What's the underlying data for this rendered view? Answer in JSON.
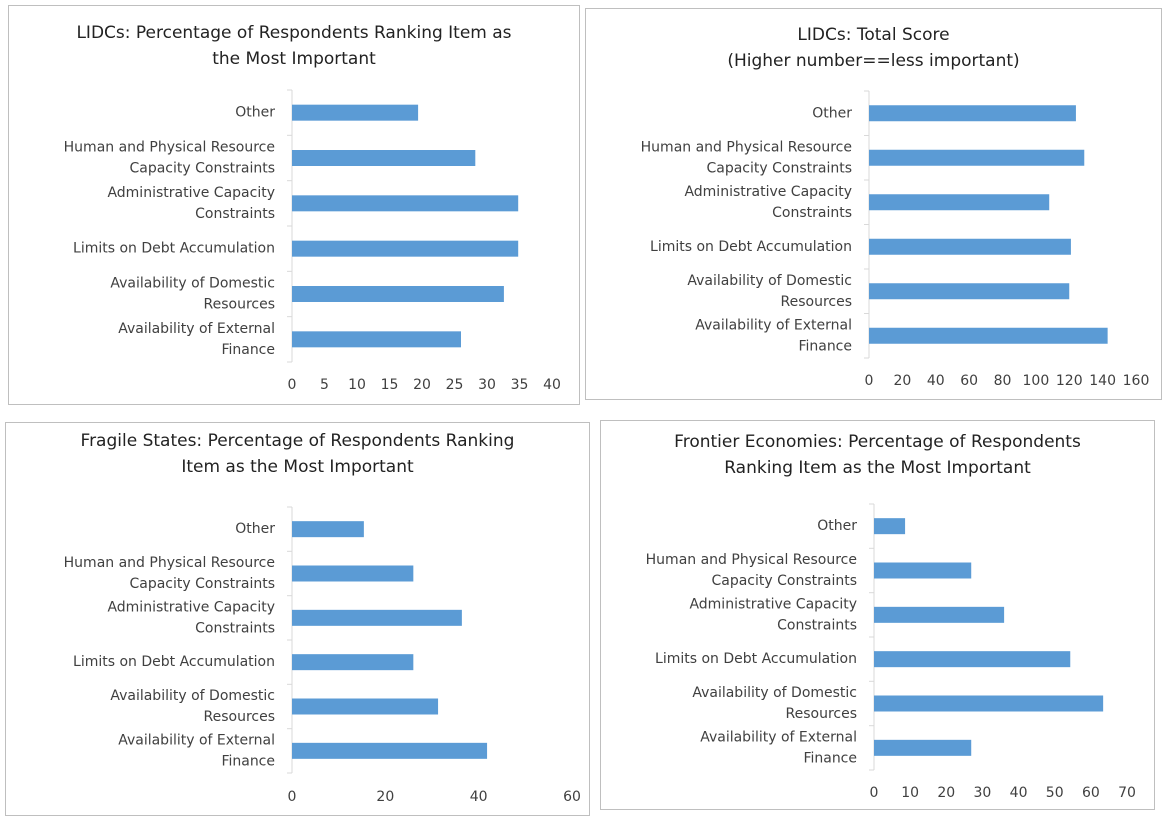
{
  "chart_data": [
    {
      "type": "bar",
      "orientation": "horizontal",
      "title": "LIDCs: Percentage of Respondents Ranking Item as the Most Important",
      "categories": [
        "Other",
        "Human and Physical Resource Capacity Constraints",
        "Administrative Capacity Constraints",
        "Limits on Debt Accumulation",
        "Availability of Domestic Resources",
        "Availability of External Finance"
      ],
      "values": [
        19.4,
        28.2,
        34.8,
        34.8,
        32.6,
        26
      ],
      "color": "#5b9bd5",
      "xlim": [
        0,
        40
      ],
      "xticks": [
        0,
        5,
        10,
        15,
        20,
        25,
        30,
        35,
        40
      ]
    },
    {
      "type": "bar",
      "orientation": "horizontal",
      "title": "LIDCs: Total Score",
      "subtitle": "(Higher number==less important)",
      "categories": [
        "Other",
        "Human and Physical Resource Capacity Constraints",
        "Administrative Capacity Constraints",
        "Limits on Debt Accumulation",
        "Availability of Domestic Resources",
        "Availability of External Finance"
      ],
      "values": [
        124,
        129,
        108,
        121,
        120,
        143
      ],
      "color": "#5b9bd5",
      "xlim": [
        0,
        160
      ],
      "xticks": [
        0,
        20,
        40,
        60,
        80,
        100,
        120,
        140,
        160
      ]
    },
    {
      "type": "bar",
      "orientation": "horizontal",
      "title": "Fragile States: Percentage of Respondents Ranking Item as the Most Important",
      "categories": [
        "Other",
        "Human and Physical Resource Capacity Constraints",
        "Administrative Capacity Constraints",
        "Limits on Debt Accumulation",
        "Availability of Domestic Resources",
        "Availability of External Finance"
      ],
      "values": [
        15.4,
        26,
        36.4,
        26,
        31.3,
        41.8
      ],
      "color": "#5b9bd5",
      "xlim": [
        0,
        60
      ],
      "xticks": [
        0,
        20,
        40,
        60
      ]
    },
    {
      "type": "bar",
      "orientation": "horizontal",
      "title": "Frontier Economies: Percentage of Respondents Ranking Item as the Most Important",
      "categories": [
        "Other",
        "Human and Physical Resource Capacity Constraints",
        "Administrative Capacity Constraints",
        "Limits on Debt Accumulation",
        "Availability of Domestic Resources",
        "Availability of External Finance"
      ],
      "values": [
        8.6,
        26.9,
        36,
        54.3,
        63.4,
        26.9
      ],
      "color": "#5b9bd5",
      "xlim": [
        0,
        70
      ],
      "xticks": [
        0,
        10,
        20,
        30,
        40,
        50,
        60,
        70
      ]
    }
  ]
}
